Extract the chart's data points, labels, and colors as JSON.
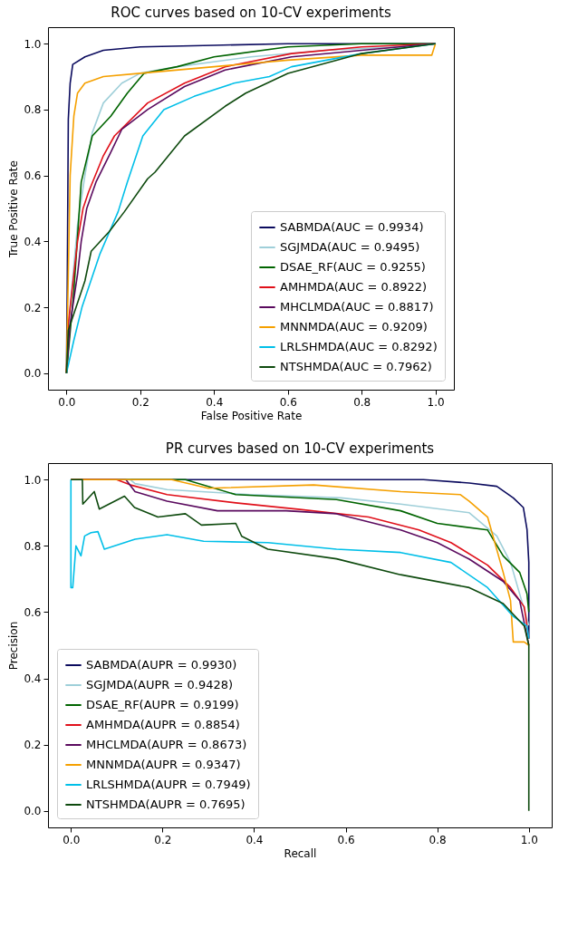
{
  "chart_data": [
    {
      "type": "line",
      "title": "ROC curves based on 10-CV experiments",
      "xlabel": "False Positive Rate",
      "ylabel": "True Positive Rate",
      "xlim": [
        -0.05,
        1.05
      ],
      "ylim": [
        -0.05,
        1.05
      ],
      "xticks": [
        {
          "value": 0,
          "label": "0.0"
        },
        {
          "value": 0.2,
          "label": "0.2"
        },
        {
          "value": 0.4,
          "label": "0.4"
        },
        {
          "value": 0.6,
          "label": "0.6"
        },
        {
          "value": 0.8,
          "label": "0.8"
        },
        {
          "value": 1,
          "label": "1.0"
        }
      ],
      "yticks": [
        {
          "value": 0,
          "label": "0.0"
        },
        {
          "value": 0.2,
          "label": "0.2"
        },
        {
          "value": 0.4,
          "label": "0.4"
        },
        {
          "value": 0.6,
          "label": "0.6"
        },
        {
          "value": 0.8,
          "label": "0.8"
        },
        {
          "value": 1,
          "label": "1.0"
        }
      ],
      "grid": false,
      "legend": "bottom right",
      "series": [
        {
          "name": "SABMDA(AUC = 0.9934)",
          "color": "#0b0b5e",
          "x": [
            0,
            0.002,
            0.005,
            0.01,
            0.017,
            0.05,
            0.1,
            0.2,
            0.4,
            0.6,
            1
          ],
          "values": [
            0,
            0.25,
            0.77,
            0.88,
            0.937,
            0.96,
            0.98,
            0.99,
            0.995,
            1,
            1
          ]
        },
        {
          "name": "SGJMDA(AUC = 0.9495)",
          "color": "#9fcfd9",
          "x": [
            0,
            0.01,
            0.03,
            0.05,
            0.07,
            0.1,
            0.15,
            0.2,
            0.3,
            0.5,
            0.7,
            0.9,
            1
          ],
          "values": [
            0,
            0.2,
            0.45,
            0.6,
            0.73,
            0.82,
            0.88,
            0.91,
            0.93,
            0.96,
            0.98,
            0.99,
            1
          ]
        },
        {
          "name": "DSAE_RF(AUC = 0.9255)",
          "color": "#006400",
          "x": [
            0,
            0.02,
            0.04,
            0.07,
            0.12,
            0.165,
            0.21,
            0.3,
            0.4,
            0.6,
            0.8,
            1
          ],
          "values": [
            0,
            0.25,
            0.58,
            0.72,
            0.78,
            0.85,
            0.91,
            0.93,
            0.96,
            0.99,
            1,
            1
          ]
        },
        {
          "name": "AMHMDA(AUC = 0.8922)",
          "color": "#e0101a",
          "x": [
            0,
            0.005,
            0.02,
            0.03,
            0.045,
            0.06,
            0.1,
            0.13,
            0.22,
            0.32,
            0.43,
            0.61,
            0.8,
            1
          ],
          "values": [
            0,
            0.15,
            0.3,
            0.4,
            0.5,
            0.55,
            0.66,
            0.72,
            0.82,
            0.88,
            0.93,
            0.97,
            0.99,
            1
          ]
        },
        {
          "name": "MHCLMDA(AUC = 0.8817)",
          "color": "#5a0a5e",
          "x": [
            0,
            0.01,
            0.03,
            0.04,
            0.055,
            0.08,
            0.12,
            0.15,
            0.22,
            0.32,
            0.43,
            0.61,
            0.8,
            1
          ],
          "values": [
            0,
            0.15,
            0.3,
            0.4,
            0.5,
            0.58,
            0.67,
            0.74,
            0.8,
            0.87,
            0.92,
            0.96,
            0.98,
            1
          ]
        },
        {
          "name": "MNNMDA(AUC = 0.9209)",
          "color": "#f5a000",
          "x": [
            0,
            0.005,
            0.01,
            0.02,
            0.03,
            0.05,
            0.1,
            0.2,
            0.4,
            0.6,
            0.8,
            0.99,
            1
          ],
          "values": [
            0,
            0.3,
            0.6,
            0.78,
            0.85,
            0.88,
            0.9,
            0.91,
            0.93,
            0.95,
            0.965,
            0.965,
            1
          ]
        },
        {
          "name": "LRLSHMDA(AUC = 0.8292)",
          "color": "#00bfe8",
          "x": [
            0,
            0.02,
            0.042,
            0.09,
            0.14,
            0.165,
            0.207,
            0.264,
            0.346,
            0.454,
            0.55,
            0.61,
            0.8,
            1
          ],
          "values": [
            0,
            0.1,
            0.2,
            0.36,
            0.49,
            0.58,
            0.72,
            0.8,
            0.84,
            0.88,
            0.9,
            0.93,
            0.97,
            1
          ]
        },
        {
          "name": "NTSHMDA(AUC = 0.7962)",
          "color": "#0e4a0e",
          "x": [
            0,
            0.005,
            0.05,
            0.067,
            0.116,
            0.157,
            0.22,
            0.24,
            0.32,
            0.43,
            0.486,
            0.6,
            0.8,
            1
          ],
          "values": [
            0,
            0.13,
            0.28,
            0.37,
            0.43,
            0.49,
            0.59,
            0.61,
            0.72,
            0.81,
            0.85,
            0.91,
            0.97,
            1
          ]
        }
      ]
    },
    {
      "type": "line",
      "title": "PR curves based on 10-CV experiments",
      "xlabel": "Recall",
      "ylabel": "Precision",
      "xlim": [
        -0.05,
        1.05
      ],
      "ylim": [
        -0.05,
        1.05
      ],
      "xticks": [
        {
          "value": 0,
          "label": "0.0"
        },
        {
          "value": 0.2,
          "label": "0.2"
        },
        {
          "value": 0.4,
          "label": "0.4"
        },
        {
          "value": 0.6,
          "label": "0.6"
        },
        {
          "value": 0.8,
          "label": "0.8"
        },
        {
          "value": 1,
          "label": "1.0"
        }
      ],
      "yticks": [
        {
          "value": 0,
          "label": "0.0"
        },
        {
          "value": 0.2,
          "label": "0.2"
        },
        {
          "value": 0.4,
          "label": "0.4"
        },
        {
          "value": 0.6,
          "label": "0.6"
        },
        {
          "value": 0.8,
          "label": "0.8"
        },
        {
          "value": 1,
          "label": "1.0"
        }
      ],
      "grid": false,
      "legend": "bottom left",
      "series": [
        {
          "name": "SABMDA(AUPR = 0.9930)",
          "color": "#0b0b5e",
          "x": [
            0,
            0.77,
            0.87,
            0.93,
            0.966,
            0.988,
            0.996,
            1,
            1
          ],
          "values": [
            1,
            1,
            0.99,
            0.98,
            0.945,
            0.916,
            0.85,
            0.75,
            0.52
          ]
        },
        {
          "name": "SGJMDA(AUPR = 0.9428)",
          "color": "#9fcfd9",
          "x": [
            0,
            0.13,
            0.14,
            0.21,
            0.39,
            0.49,
            0.59,
            0.72,
            0.87,
            0.93,
            0.96,
            0.98,
            1
          ],
          "values": [
            1,
            1,
            0.988,
            0.97,
            0.955,
            0.95,
            0.945,
            0.926,
            0.9,
            0.83,
            0.75,
            0.655,
            0.56
          ]
        },
        {
          "name": "DSAE_RF(AUPR = 0.9199)",
          "color": "#006400",
          "x": [
            0,
            0.25,
            0.36,
            0.58,
            0.72,
            0.8,
            0.91,
            0.944,
            0.98,
            0.996,
            1
          ],
          "values": [
            1,
            1,
            0.955,
            0.94,
            0.906,
            0.868,
            0.848,
            0.77,
            0.72,
            0.655,
            0.6
          ]
        },
        {
          "name": "AMHMDA(AUPR = 0.8854)",
          "color": "#e0101a",
          "x": [
            0,
            0.1,
            0.13,
            0.21,
            0.36,
            0.5,
            0.65,
            0.76,
            0.83,
            0.91,
            0.96,
            0.99,
            1
          ],
          "values": [
            1,
            1,
            0.984,
            0.955,
            0.93,
            0.91,
            0.887,
            0.848,
            0.81,
            0.742,
            0.674,
            0.616,
            0.52
          ]
        },
        {
          "name": "MHCLMDA(AUPR = 0.8673)",
          "color": "#5a0a5e",
          "x": [
            0,
            0.12,
            0.14,
            0.21,
            0.32,
            0.47,
            0.58,
            0.72,
            0.8,
            0.87,
            0.944,
            0.98,
            1
          ],
          "values": [
            1,
            1,
            0.964,
            0.935,
            0.906,
            0.906,
            0.897,
            0.848,
            0.81,
            0.76,
            0.693,
            0.635,
            0.5
          ]
        },
        {
          "name": "MNNMDA(AUPR = 0.9347)",
          "color": "#f5a000",
          "x": [
            0,
            0.22,
            0.3,
            0.53,
            0.72,
            0.85,
            0.87,
            0.91,
            0.944,
            0.96,
            0.966,
            0.99,
            1
          ],
          "values": [
            1,
            1,
            0.974,
            0.984,
            0.964,
            0.955,
            0.935,
            0.887,
            0.72,
            0.635,
            0.51,
            0.51,
            0.5
          ]
        },
        {
          "name": "LRLSHMDA(AUPR = 0.7949)",
          "color": "#00bfe8",
          "x": [
            0,
            0,
            0.004,
            0.011,
            0.022,
            0.03,
            0.044,
            0.059,
            0.073,
            0.14,
            0.21,
            0.29,
            0.43,
            0.58,
            0.72,
            0.83,
            0.91,
            0.966,
            0.996,
            1
          ],
          "values": [
            1,
            0.674,
            0.674,
            0.8,
            0.77,
            0.83,
            0.84,
            0.843,
            0.79,
            0.82,
            0.834,
            0.814,
            0.81,
            0.79,
            0.78,
            0.75,
            0.674,
            0.587,
            0.558,
            0.52
          ]
        },
        {
          "name": "NTSHMDA(AUPR = 0.7695)",
          "color": "#0e4a0e",
          "x": [
            0,
            0.025,
            0.026,
            0.051,
            0.062,
            0.117,
            0.139,
            0.19,
            0.25,
            0.285,
            0.36,
            0.373,
            0.43,
            0.58,
            0.72,
            0.87,
            0.944,
            0.99,
            1,
            1
          ],
          "values": [
            1,
            1,
            0.926,
            0.964,
            0.911,
            0.95,
            0.916,
            0.887,
            0.897,
            0.863,
            0.868,
            0.829,
            0.79,
            0.761,
            0.713,
            0.674,
            0.626,
            0.558,
            0.5,
            0
          ]
        }
      ]
    }
  ]
}
